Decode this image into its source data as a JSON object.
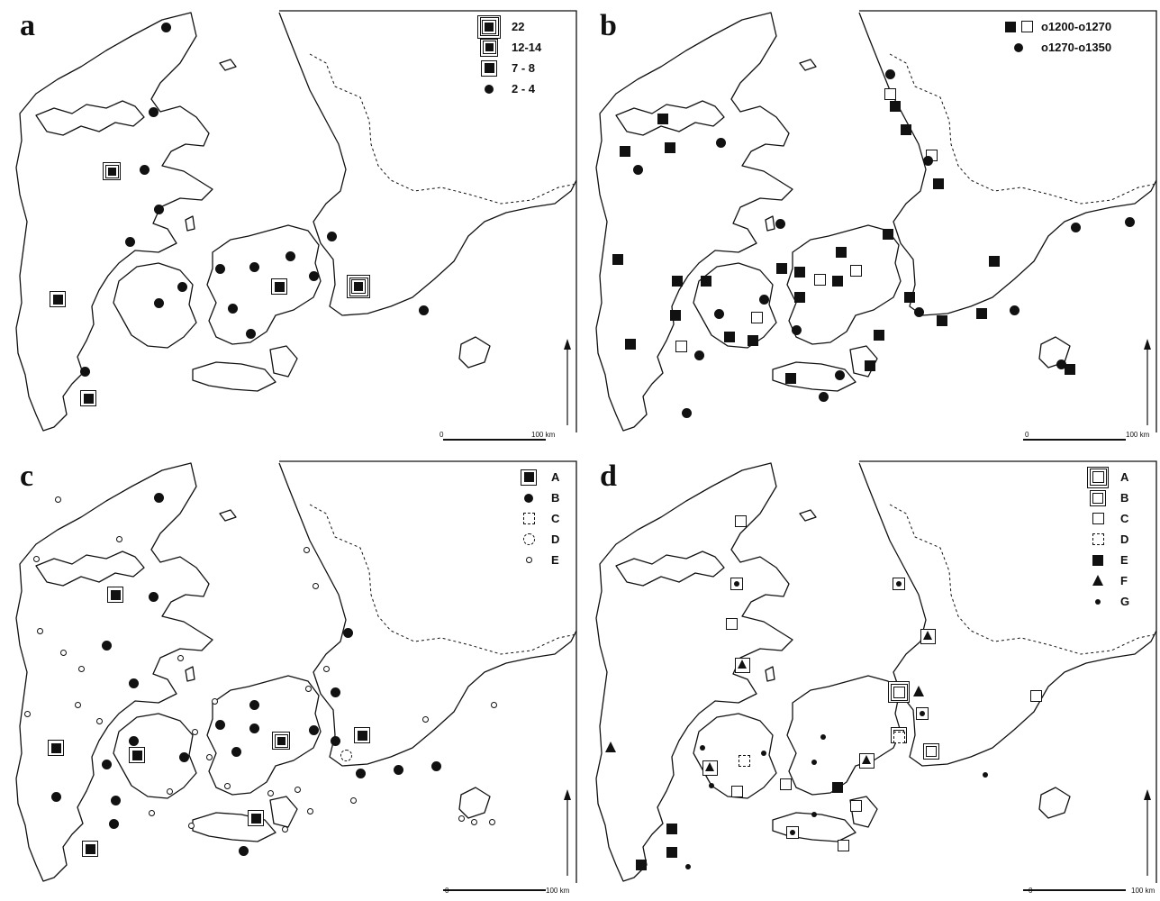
{
  "panels": [
    {
      "letter": "a",
      "legend": [
        {
          "symbol": "square-triple-ring",
          "label": "22"
        },
        {
          "symbol": "square-double-ring",
          "label": "12-14"
        },
        {
          "symbol": "square-ring",
          "label": "7 - 8"
        },
        {
          "symbol": "dot",
          "label": "2 - 4"
        }
      ],
      "scale": {
        "start": "0",
        "end": "100 km"
      }
    },
    {
      "letter": "b",
      "legend": [
        {
          "symbol": "filled-and-open-square",
          "label": "o1200-o1270"
        },
        {
          "symbol": "dot",
          "label": "o1270-o1350"
        }
      ],
      "scale": {
        "start": "0",
        "end": "100 km"
      }
    },
    {
      "letter": "c",
      "legend": [
        {
          "symbol": "square-ring",
          "label": "A"
        },
        {
          "symbol": "dot",
          "label": "B"
        },
        {
          "symbol": "dashed-square",
          "label": "C"
        },
        {
          "symbol": "dashed-circle",
          "label": "D"
        },
        {
          "symbol": "small-open-circle",
          "label": "E"
        }
      ],
      "scale": {
        "start": "0",
        "end": "100 km"
      }
    },
    {
      "letter": "d",
      "legend": [
        {
          "symbol": "open-square-triple-ring",
          "label": "A"
        },
        {
          "symbol": "open-square-double-ring",
          "label": "B"
        },
        {
          "symbol": "open-square",
          "label": "C"
        },
        {
          "symbol": "dashed-square",
          "label": "D"
        },
        {
          "symbol": "filled-square",
          "label": "E"
        },
        {
          "symbol": "triangle",
          "label": "F"
        },
        {
          "symbol": "small-dot",
          "label": "G"
        }
      ],
      "scale": {
        "start": "0",
        "end": "100 km"
      }
    }
  ],
  "north_arrow": "north-arrow-icon"
}
